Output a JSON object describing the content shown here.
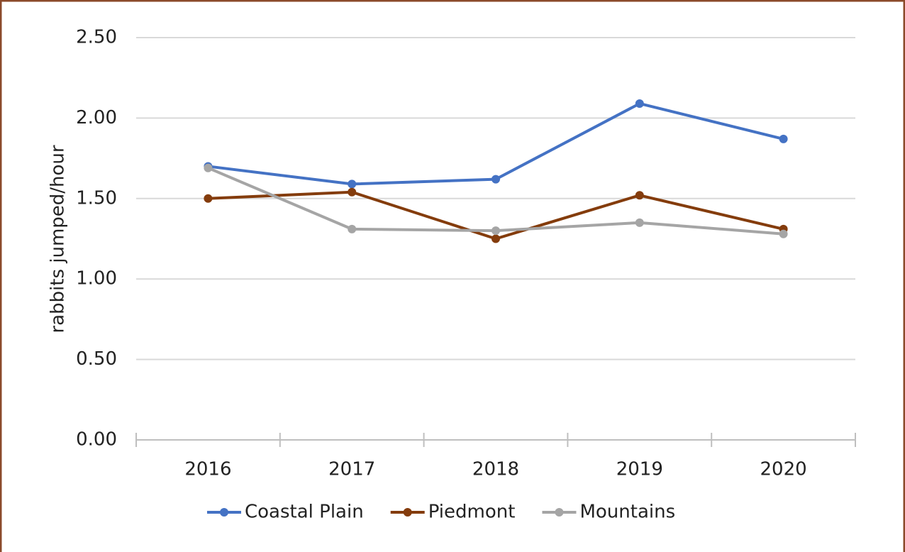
{
  "chart_data": {
    "type": "line",
    "y_label": "rabbits jumped/hour",
    "categories": [
      "2016",
      "2017",
      "2018",
      "2019",
      "2020"
    ],
    "series": [
      {
        "name": "Coastal Plain",
        "color": "#4472c4",
        "values": [
          1.7,
          1.59,
          1.62,
          2.09,
          1.87
        ]
      },
      {
        "name": "Piedmont",
        "color": "#843c0c",
        "values": [
          1.5,
          1.54,
          1.25,
          1.52,
          1.31
        ]
      },
      {
        "name": "Mountains",
        "color": "#a5a5a5",
        "values": [
          1.69,
          1.31,
          1.3,
          1.35,
          1.28
        ]
      }
    ],
    "ylim": [
      0,
      2.5
    ],
    "yticks": [
      {
        "value": 0,
        "label": "0.00"
      },
      {
        "value": 0.5,
        "label": "0.50"
      },
      {
        "value": 1,
        "label": "1.00"
      },
      {
        "value": 1.5,
        "label": "1.50"
      },
      {
        "value": 2,
        "label": "2.00"
      },
      {
        "value": 2.5,
        "label": "2.50"
      }
    ],
    "grid": true,
    "legend": "bottom"
  }
}
